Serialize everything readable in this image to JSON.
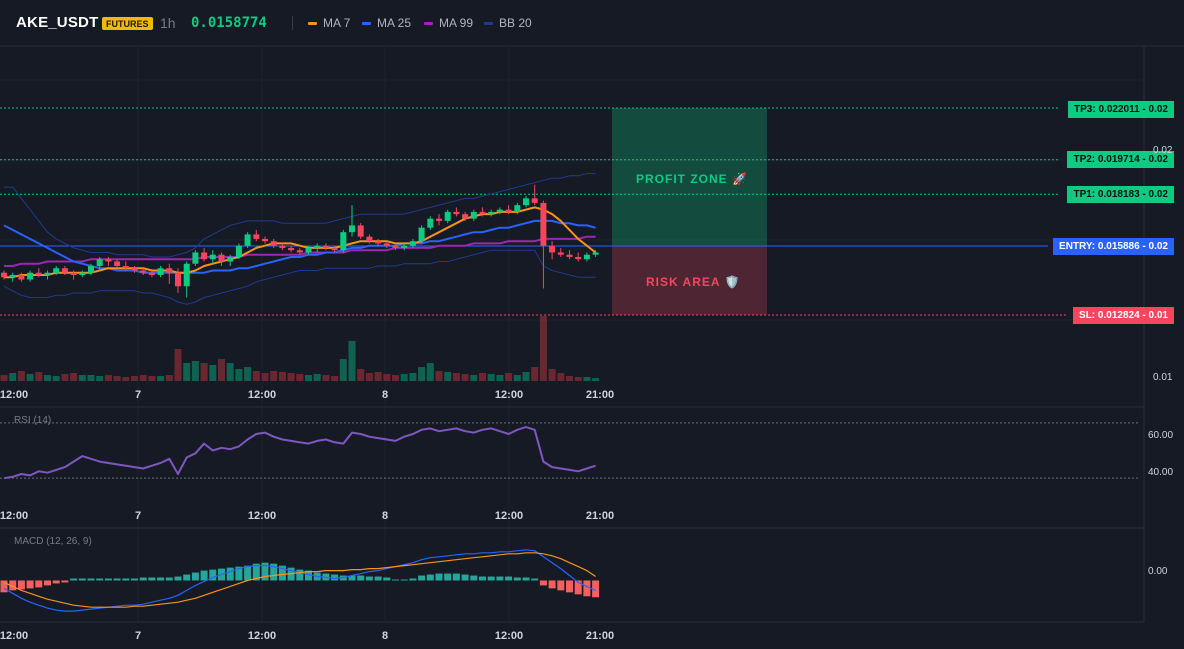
{
  "header": {
    "symbol": "AKE_USDT",
    "badge": "FUTURES",
    "timeframe": "1h",
    "price": "0.0158774",
    "legend": [
      {
        "label": "MA 7",
        "color": "#f7931a"
      },
      {
        "label": "MA 25",
        "color": "#2962ff"
      },
      {
        "label": "MA 99",
        "color": "#9c27b0"
      },
      {
        "label": "BB 20",
        "color": "#1e3c8c"
      }
    ]
  },
  "levels": {
    "tp3": "TP3: 0.022011",
    "tp2": "TP2: 0.019714",
    "tp1": "TP1: 0.018183",
    "entry": "ENTRY: 0.015886",
    "sl": "SL: 0.012824",
    "tp3_price": "0.02",
    "tp2_price": "0.02",
    "tp1_price": "0.02",
    "entry_price": "0.02",
    "sl_price": "0.01",
    "profit_zone": "PROFIT ZONE 🚀",
    "risk_area": "RISK AREA 🛡️",
    "axis_top": "0.02",
    "axis_bottom": "0.01"
  },
  "time_axis": [
    "12:00",
    "7",
    "12:00",
    "8",
    "12:00",
    "21:00"
  ],
  "rsi": {
    "title": "RSI (14)",
    "ticks": [
      "60.00",
      "40.00"
    ]
  },
  "macd": {
    "title": "MACD (12, 26, 9)",
    "ticks": [
      "0.00"
    ]
  },
  "colors": {
    "up": "#0ecb81",
    "down": "#f6465d",
    "entry": "#2962ff",
    "bg": "#161a25"
  },
  "chart_data": {
    "type": "candlestick",
    "symbol": "AKE_USDT",
    "timeframe": "1h",
    "ohlc": [
      [
        0.0147,
        0.0148,
        0.0144,
        0.0145
      ],
      [
        0.0145,
        0.0147,
        0.0143,
        0.0146
      ],
      [
        0.0146,
        0.0147,
        0.0143,
        0.0144
      ],
      [
        0.0144,
        0.0148,
        0.0143,
        0.0147
      ],
      [
        0.0147,
        0.0149,
        0.0145,
        0.0146
      ],
      [
        0.0146,
        0.0148,
        0.0144,
        0.0147
      ],
      [
        0.0147,
        0.015,
        0.0146,
        0.0149
      ],
      [
        0.0149,
        0.015,
        0.0146,
        0.0147
      ],
      [
        0.0147,
        0.0148,
        0.0144,
        0.0146
      ],
      [
        0.0146,
        0.0148,
        0.0145,
        0.0147
      ],
      [
        0.0147,
        0.0151,
        0.0146,
        0.015
      ],
      [
        0.015,
        0.0154,
        0.0148,
        0.0153
      ],
      [
        0.0153,
        0.0154,
        0.015,
        0.0152
      ],
      [
        0.0152,
        0.0153,
        0.0149,
        0.015
      ],
      [
        0.015,
        0.0152,
        0.0148,
        0.0149
      ],
      [
        0.0149,
        0.015,
        0.0147,
        0.0148
      ],
      [
        0.0148,
        0.0149,
        0.0146,
        0.0147
      ],
      [
        0.0147,
        0.0148,
        0.0145,
        0.0146
      ],
      [
        0.0146,
        0.015,
        0.0145,
        0.0149
      ],
      [
        0.0149,
        0.0151,
        0.0142,
        0.0147
      ],
      [
        0.0147,
        0.0149,
        0.0138,
        0.0141
      ],
      [
        0.0141,
        0.0152,
        0.0136,
        0.0151
      ],
      [
        0.0151,
        0.0157,
        0.015,
        0.0156
      ],
      [
        0.0156,
        0.0158,
        0.0152,
        0.0153
      ],
      [
        0.0153,
        0.0157,
        0.0151,
        0.0155
      ],
      [
        0.0155,
        0.0156,
        0.015,
        0.0152
      ],
      [
        0.0152,
        0.0155,
        0.015,
        0.0154
      ],
      [
        0.0154,
        0.016,
        0.0153,
        0.0159
      ],
      [
        0.0159,
        0.0165,
        0.0158,
        0.0164
      ],
      [
        0.0164,
        0.0166,
        0.0161,
        0.0162
      ],
      [
        0.0162,
        0.0163,
        0.016,
        0.0161
      ],
      [
        0.0161,
        0.0162,
        0.0158,
        0.0159
      ],
      [
        0.0159,
        0.016,
        0.0157,
        0.0158
      ],
      [
        0.0158,
        0.0159,
        0.0156,
        0.0157
      ],
      [
        0.0157,
        0.0158,
        0.0155,
        0.0156
      ],
      [
        0.0156,
        0.0159,
        0.0155,
        0.0158
      ],
      [
        0.0158,
        0.016,
        0.0156,
        0.0159
      ],
      [
        0.0159,
        0.016,
        0.0157,
        0.0158
      ],
      [
        0.0158,
        0.0159,
        0.0156,
        0.0157
      ],
      [
        0.0157,
        0.0166,
        0.0156,
        0.0165
      ],
      [
        0.0165,
        0.0177,
        0.0163,
        0.0168
      ],
      [
        0.0168,
        0.0169,
        0.0162,
        0.0163
      ],
      [
        0.0163,
        0.0164,
        0.016,
        0.0161
      ],
      [
        0.0161,
        0.0162,
        0.0159,
        0.016
      ],
      [
        0.016,
        0.0161,
        0.0158,
        0.0159
      ],
      [
        0.0159,
        0.016,
        0.0157,
        0.0158
      ],
      [
        0.0158,
        0.016,
        0.0157,
        0.0159
      ],
      [
        0.0159,
        0.0162,
        0.0158,
        0.0161
      ],
      [
        0.0161,
        0.0168,
        0.016,
        0.0167
      ],
      [
        0.0167,
        0.0172,
        0.0166,
        0.0171
      ],
      [
        0.0171,
        0.0173,
        0.0168,
        0.017
      ],
      [
        0.017,
        0.0175,
        0.0169,
        0.0174
      ],
      [
        0.0174,
        0.0176,
        0.0172,
        0.0173
      ],
      [
        0.0173,
        0.0174,
        0.017,
        0.0171
      ],
      [
        0.0171,
        0.0175,
        0.017,
        0.0174
      ],
      [
        0.0174,
        0.0176,
        0.0172,
        0.0173
      ],
      [
        0.0173,
        0.0175,
        0.0172,
        0.0174
      ],
      [
        0.0174,
        0.0176,
        0.0173,
        0.0175
      ],
      [
        0.0175,
        0.0177,
        0.0173,
        0.0174
      ],
      [
        0.0174,
        0.0178,
        0.0173,
        0.0177
      ],
      [
        0.0177,
        0.0181,
        0.0176,
        0.018
      ],
      [
        0.018,
        0.0186,
        0.0177,
        0.0178
      ],
      [
        0.0178,
        0.0179,
        0.014,
        0.0159
      ],
      [
        0.0159,
        0.0161,
        0.0153,
        0.0156
      ],
      [
        0.0156,
        0.0158,
        0.0154,
        0.0155
      ],
      [
        0.0155,
        0.0157,
        0.0153,
        0.0154
      ],
      [
        0.0154,
        0.0156,
        0.0152,
        0.0153
      ],
      [
        0.0153,
        0.0156,
        0.0152,
        0.0155
      ],
      [
        0.0155,
        0.0157,
        0.0154,
        0.0156
      ]
    ],
    "ma7": [
      0.0145,
      0.0145,
      0.0146,
      0.0146,
      0.0146,
      0.0146,
      0.0147,
      0.0147,
      0.0147,
      0.0147,
      0.0147,
      0.0148,
      0.0149,
      0.0149,
      0.0149,
      0.0149,
      0.0149,
      0.0148,
      0.0148,
      0.0148,
      0.0147,
      0.0147,
      0.0148,
      0.015,
      0.0151,
      0.0152,
      0.0153,
      0.0154,
      0.0156,
      0.0158,
      0.0159,
      0.016,
      0.016,
      0.016,
      0.0159,
      0.0158,
      0.0158,
      0.0158,
      0.0158,
      0.0159,
      0.016,
      0.0161,
      0.0161,
      0.0161,
      0.0161,
      0.016,
      0.016,
      0.016,
      0.0161,
      0.0163,
      0.0165,
      0.0167,
      0.0169,
      0.0171,
      0.0172,
      0.0173,
      0.0173,
      0.0174,
      0.0174,
      0.0174,
      0.0175,
      0.0176,
      0.0175,
      0.0173,
      0.017,
      0.0166,
      0.0162,
      0.0159,
      0.0156
    ],
    "ma25": [
      0.0168,
      0.0166,
      0.0164,
      0.0162,
      0.016,
      0.0158,
      0.0156,
      0.0154,
      0.0152,
      0.0151,
      0.015,
      0.0149,
      0.0149,
      0.0148,
      0.0148,
      0.0148,
      0.0147,
      0.0147,
      0.0147,
      0.0147,
      0.0147,
      0.0147,
      0.0147,
      0.0147,
      0.0148,
      0.0148,
      0.0148,
      0.0149,
      0.0149,
      0.015,
      0.0151,
      0.0152,
      0.0153,
      0.0154,
      0.0154,
      0.0155,
      0.0155,
      0.0156,
      0.0156,
      0.0157,
      0.0158,
      0.0158,
      0.0159,
      0.0159,
      0.0159,
      0.0159,
      0.016,
      0.016,
      0.016,
      0.0161,
      0.0161,
      0.0162,
      0.0163,
      0.0164,
      0.0165,
      0.0165,
      0.0166,
      0.0167,
      0.0167,
      0.0168,
      0.0169,
      0.017,
      0.017,
      0.017,
      0.0169,
      0.0169,
      0.0168,
      0.0168,
      0.0167
    ],
    "ma99": [
      0.015,
      0.015,
      0.0151,
      0.0151,
      0.0151,
      0.0152,
      0.0152,
      0.0152,
      0.0152,
      0.0152,
      0.0153,
      0.0153,
      0.0153,
      0.0153,
      0.0153,
      0.0153,
      0.0153,
      0.0153,
      0.0153,
      0.0153,
      0.0153,
      0.0153,
      0.0153,
      0.0154,
      0.0154,
      0.0154,
      0.0154,
      0.0154,
      0.0155,
      0.0155,
      0.0155,
      0.0155,
      0.0155,
      0.0155,
      0.0155,
      0.0156,
      0.0156,
      0.0156,
      0.0156,
      0.0156,
      0.0157,
      0.0157,
      0.0157,
      0.0157,
      0.0157,
      0.0158,
      0.0158,
      0.0158,
      0.0158,
      0.0158,
      0.0159,
      0.0159,
      0.0159,
      0.0159,
      0.016,
      0.016,
      0.016,
      0.016,
      0.0161,
      0.0161,
      0.0161,
      0.0161,
      0.0162,
      0.0162,
      0.0162,
      0.0162,
      0.0162,
      0.0163,
      0.0163
    ],
    "bb_upper": [
      0.0185,
      0.0185,
      0.018,
      0.0175,
      0.017,
      0.0165,
      0.0162,
      0.016,
      0.0158,
      0.0157,
      0.0156,
      0.0156,
      0.0156,
      0.0155,
      0.0155,
      0.0155,
      0.0155,
      0.0154,
      0.0154,
      0.0154,
      0.0155,
      0.0156,
      0.0158,
      0.0162,
      0.0164,
      0.0166,
      0.0168,
      0.0169,
      0.017,
      0.017,
      0.017,
      0.017,
      0.0169,
      0.0169,
      0.0169,
      0.0169,
      0.0169,
      0.0169,
      0.017,
      0.0171,
      0.0172,
      0.0173,
      0.0173,
      0.0173,
      0.0173,
      0.0173,
      0.0173,
      0.0174,
      0.0175,
      0.0176,
      0.0177,
      0.0178,
      0.0179,
      0.018,
      0.018,
      0.0181,
      0.0182,
      0.0183,
      0.0184,
      0.0185,
      0.0186,
      0.0187,
      0.0188,
      0.0189,
      0.0189,
      0.019,
      0.019,
      0.0191,
      0.0191
    ],
    "bb_lower": [
      0.0141,
      0.0139,
      0.0137,
      0.0136,
      0.0136,
      0.0136,
      0.0137,
      0.0137,
      0.0138,
      0.0138,
      0.0138,
      0.0139,
      0.0139,
      0.0139,
      0.0139,
      0.0139,
      0.0138,
      0.0138,
      0.0137,
      0.0136,
      0.0134,
      0.0133,
      0.0134,
      0.0136,
      0.0137,
      0.0138,
      0.0139,
      0.014,
      0.0141,
      0.0143,
      0.0144,
      0.0145,
      0.0146,
      0.0147,
      0.0148,
      0.0148,
      0.0148,
      0.0149,
      0.0149,
      0.0149,
      0.0149,
      0.0149,
      0.0149,
      0.015,
      0.015,
      0.015,
      0.0151,
      0.0151,
      0.0151,
      0.0151,
      0.0152,
      0.0152,
      0.0153,
      0.0154,
      0.0155,
      0.0156,
      0.0157,
      0.0157,
      0.0157,
      0.0157,
      0.0157,
      0.0157,
      0.015,
      0.0148,
      0.0147,
      0.0146,
      0.0145,
      0.0145,
      0.0145
    ],
    "volume": [
      6,
      8,
      10,
      7,
      9,
      6,
      5,
      7,
      8,
      6,
      6,
      5,
      6,
      5,
      4,
      5,
      6,
      5,
      5,
      6,
      32,
      18,
      20,
      18,
      16,
      22,
      18,
      12,
      14,
      10,
      8,
      10,
      9,
      8,
      7,
      6,
      7,
      6,
      5,
      22,
      40,
      12,
      8,
      9,
      7,
      6,
      7,
      8,
      14,
      18,
      10,
      9,
      8,
      7,
      6,
      8,
      7,
      6,
      8,
      6,
      9,
      14,
      65,
      12,
      8,
      5,
      4,
      4,
      3
    ],
    "rsi": [
      30,
      31,
      33,
      32,
      35,
      34,
      36,
      38,
      42,
      46,
      44,
      42,
      41,
      40,
      39,
      38,
      37,
      39,
      41,
      44,
      33,
      45,
      48,
      55,
      50,
      52,
      51,
      53,
      58,
      62,
      63,
      60,
      58,
      57,
      56,
      55,
      57,
      58,
      56,
      55,
      63,
      62,
      60,
      59,
      58,
      57,
      60,
      62,
      65,
      66,
      64,
      65,
      66,
      64,
      63,
      65,
      66,
      64,
      62,
      65,
      67,
      65,
      42,
      38,
      37,
      36,
      35,
      37,
      39
    ],
    "rsi_range": [
      20,
      75
    ],
    "macd_hist": [
      -0.00012,
      -0.0001,
      -9e-05,
      -8e-05,
      -7e-05,
      -5e-05,
      -3e-05,
      -2e-05,
      2e-05,
      2e-05,
      2e-05,
      2e-05,
      2e-05,
      2e-05,
      2e-05,
      2e-05,
      3e-05,
      3e-05,
      3e-05,
      3e-05,
      4e-05,
      6e-05,
      8e-05,
      0.0001,
      0.00011,
      0.00012,
      0.00013,
      0.00014,
      0.00015,
      0.00017,
      0.00018,
      0.00017,
      0.00015,
      0.00013,
      0.00011,
      0.0001,
      8e-05,
      7e-05,
      6e-05,
      5e-05,
      5e-05,
      5e-05,
      4e-05,
      4e-05,
      3e-05,
      1e-05,
      1e-05,
      2e-05,
      5e-05,
      6e-05,
      7e-05,
      7e-05,
      7e-05,
      6e-05,
      5e-05,
      4e-05,
      4e-05,
      4e-05,
      4e-05,
      3e-05,
      3e-05,
      2e-05,
      -5e-05,
      -8e-05,
      -0.0001,
      -0.00012,
      -0.00014,
      -0.00016,
      -0.00017
    ],
    "macd_line": [
      -8e-05,
      -0.00013,
      -0.00018,
      -0.00022,
      -0.00025,
      -0.00028,
      -0.0003,
      -0.00031,
      -0.00031,
      -0.0003,
      -0.00029,
      -0.00028,
      -0.00027,
      -0.00026,
      -0.00025,
      -0.00025,
      -0.00024,
      -0.00022,
      -0.0002,
      -0.00018,
      -0.00015,
      -0.0001,
      -5e-05,
      -1e-05,
      3e-05,
      6e-05,
      9e-05,
      0.00012,
      0.00014,
      0.00015,
      0.00015,
      0.00014,
      0.00012,
      0.0001,
      8e-05,
      6e-05,
      4e-05,
      3e-05,
      2e-05,
      3e-05,
      5e-05,
      7e-05,
      9e-05,
      0.0001,
      0.00012,
      0.00014,
      0.00016,
      0.00018,
      0.00021,
      0.00023,
      0.00024,
      0.00025,
      0.00026,
      0.00027,
      0.00027,
      0.00028,
      0.00028,
      0.00029,
      0.00029,
      0.0003,
      0.00031,
      0.0003,
      0.00024,
      0.00018,
      0.00012,
      5e-05,
      -2e-05,
      -6e-05,
      -0.0001
    ],
    "macd_signal": [
      -2e-05,
      -6e-05,
      -0.0001,
      -0.00013,
      -0.00016,
      -0.00019,
      -0.00021,
      -0.00023,
      -0.00025,
      -0.00026,
      -0.00027,
      -0.00027,
      -0.00027,
      -0.00027,
      -0.00027,
      -0.00026,
      -0.00026,
      -0.00025,
      -0.00024,
      -0.00023,
      -0.00022,
      -0.0002,
      -0.00018,
      -0.00015,
      -0.00012,
      -9e-05,
      -6e-05,
      -3e-05,
      0.0,
      2e-05,
      4e-05,
      5e-05,
      6e-05,
      7e-05,
      8e-05,
      9e-05,
      9e-05,
      0.0001,
      0.0001,
      0.0001,
      0.00011,
      0.00011,
      0.00012,
      0.00012,
      0.00013,
      0.00014,
      0.00015,
      0.00016,
      0.00017,
      0.00018,
      0.00019,
      0.0002,
      0.00021,
      0.00022,
      0.00023,
      0.00024,
      0.00025,
      0.00026,
      0.00027,
      0.00027,
      0.00028,
      0.00028,
      0.00027,
      0.00025,
      0.00022,
      0.00018,
      0.00014,
      0.0001,
      4e-05
    ],
    "macd_range": [
      -0.0004,
      0.00045
    ]
  }
}
